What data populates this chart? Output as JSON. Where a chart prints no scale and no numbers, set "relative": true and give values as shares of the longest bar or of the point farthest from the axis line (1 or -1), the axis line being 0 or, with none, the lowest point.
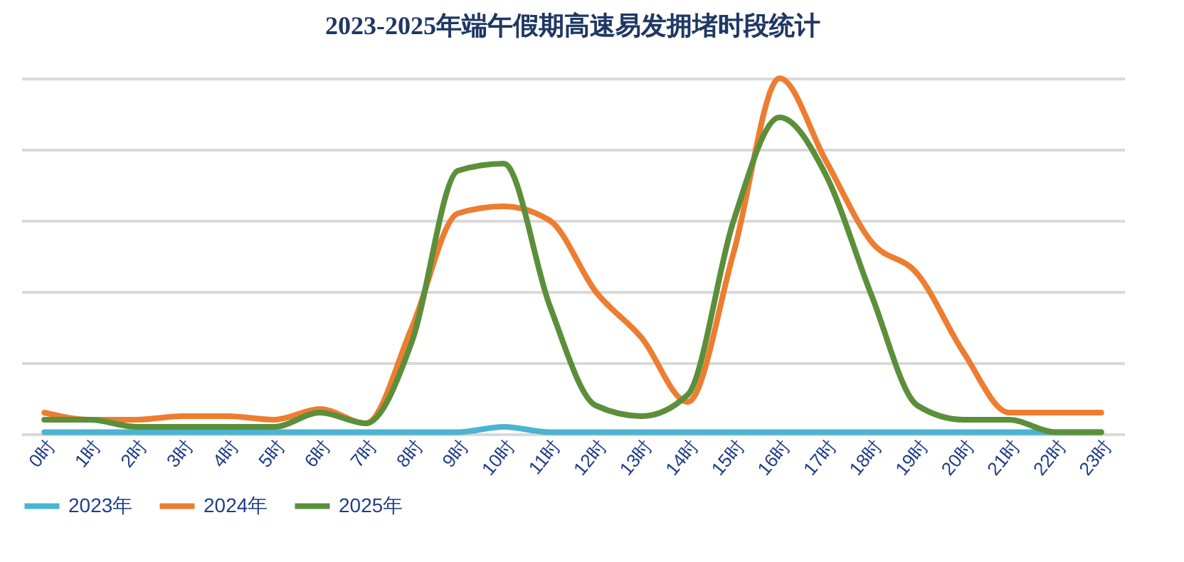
{
  "chart_data": {
    "type": "line",
    "title": "2023-2025年端午假期高速易发拥堵时段统计",
    "relative": true,
    "grid": "y",
    "legend": "bottom",
    "categories": [
      "0时",
      "1时",
      "2时",
      "3时",
      "4时",
      "5时",
      "6时",
      "7时",
      "8时",
      "9时",
      "10时",
      "11时",
      "12时",
      "13时",
      "14时",
      "15时",
      "16时",
      "17时",
      "18时",
      "19时",
      "20时",
      "21时",
      "22时",
      "23时"
    ],
    "series": [
      {
        "name": "2023年",
        "color": "#4bb4d0",
        "values": [
          0.005,
          0.005,
          0.005,
          0.005,
          0.005,
          0.005,
          0.005,
          0.005,
          0.005,
          0.005,
          0.02,
          0.005,
          0.005,
          0.005,
          0.005,
          0.005,
          0.005,
          0.005,
          0.005,
          0.005,
          0.005,
          0.005,
          0.005,
          0.005
        ]
      },
      {
        "name": "2024年",
        "color": "#ed7d31",
        "values": [
          0.06,
          0.04,
          0.04,
          0.05,
          0.05,
          0.04,
          0.07,
          0.03,
          0.3,
          0.62,
          0.64,
          0.6,
          0.4,
          0.27,
          0.09,
          0.51,
          1,
          0.77,
          0.54,
          0.45,
          0.23,
          0.06,
          0.06,
          0.06
        ]
      },
      {
        "name": "2025年",
        "color": "#5b8f3a",
        "values": [
          0.04,
          0.04,
          0.02,
          0.02,
          0.02,
          0.02,
          0.06,
          0.03,
          0.26,
          0.74,
          0.76,
          0.36,
          0.08,
          0.05,
          0.11,
          0.6,
          0.89,
          0.73,
          0.39,
          0.08,
          0.04,
          0.04,
          0.005,
          0.005
        ]
      }
    ]
  }
}
